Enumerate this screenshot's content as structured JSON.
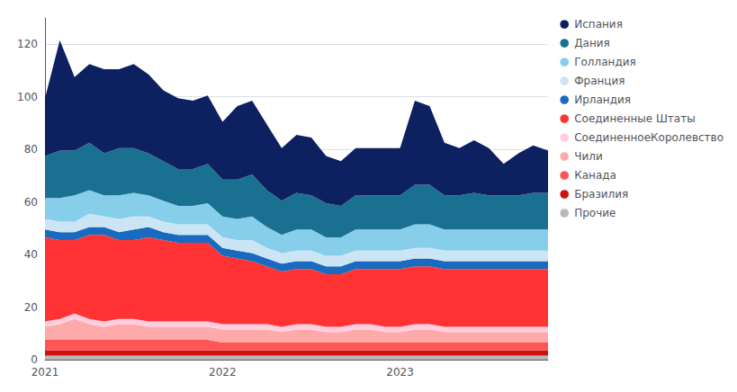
{
  "chart_data": {
    "type": "stackedarea",
    "stacked": true,
    "grid": true,
    "legend": "right",
    "categories": [
      "2021",
      null,
      null,
      null,
      null,
      null,
      null,
      null,
      null,
      null,
      null,
      null,
      "2022",
      null,
      null,
      null,
      null,
      null,
      null,
      null,
      null,
      null,
      null,
      null,
      "2023",
      null,
      null,
      null,
      null,
      null,
      null,
      null,
      null,
      null,
      null
    ],
    "ylim": [
      0,
      130
    ],
    "yticks": [
      0,
      20,
      40,
      60,
      80,
      100,
      120
    ],
    "series": [
      {
        "name": "Прочие",
        "color": "#b8b8b8",
        "values": [
          1.5,
          1.5,
          1.5,
          1.5,
          1.5,
          1.5,
          1.5,
          1.5,
          1.5,
          1.5,
          1.5,
          1.5,
          1.5,
          1.5,
          1.5,
          1.5,
          1.5,
          1.5,
          1.5,
          1.5,
          1.5,
          1.5,
          1.5,
          1.5,
          1.5,
          1.5,
          1.5,
          1.5,
          1.5,
          1.5,
          1.5,
          1.5,
          1.5,
          1.5,
          1.5
        ]
      },
      {
        "name": "Бразилия",
        "color": "#cc1111",
        "values": [
          2,
          2,
          2,
          2,
          2,
          2,
          2,
          2,
          2,
          2,
          2,
          2,
          2,
          2,
          2,
          2,
          2,
          2,
          2,
          2,
          2,
          2,
          2,
          2,
          2,
          2,
          2,
          2,
          2,
          2,
          2,
          2,
          2,
          2,
          2
        ]
      },
      {
        "name": "Канада",
        "color": "#ff5555",
        "values": [
          4,
          4,
          4,
          4,
          4,
          4,
          4,
          4,
          4,
          4,
          4,
          4,
          3,
          3,
          3,
          3,
          3,
          3,
          3,
          3,
          3,
          3,
          3,
          3,
          3,
          3,
          3,
          3,
          3,
          3,
          3,
          3,
          3,
          3,
          3
        ]
      },
      {
        "name": "Чили",
        "color": "#ffaaaa",
        "values": [
          5,
          6,
          8,
          6,
          5,
          6,
          6,
          5,
          5,
          5,
          5,
          5,
          5,
          5,
          5,
          5,
          4,
          5,
          5,
          4,
          4,
          5,
          5,
          4,
          4,
          5,
          5,
          4,
          4,
          4,
          4,
          4,
          4,
          4,
          4
        ]
      },
      {
        "name": "СоединенноеКоролевство",
        "color": "#ffcce0",
        "values": [
          2,
          2,
          2,
          2,
          2,
          2,
          2,
          2,
          2,
          2,
          2,
          2,
          2,
          2,
          2,
          2,
          2,
          2,
          2,
          2,
          2,
          2,
          2,
          2,
          2,
          2,
          2,
          2,
          2,
          2,
          2,
          2,
          2,
          2,
          2
        ]
      },
      {
        "name": "Соединенные Штаты",
        "color": "#ff3333",
        "values": [
          32,
          30,
          28,
          32,
          33,
          30,
          30,
          32,
          31,
          30,
          30,
          30,
          26,
          25,
          24,
          22,
          21,
          21,
          21,
          20,
          20,
          21,
          21,
          22,
          22,
          22,
          22,
          22,
          22,
          22,
          22,
          22,
          22,
          22,
          22
        ]
      },
      {
        "name": "Ирландия",
        "color": "#1a6abf",
        "values": [
          3,
          3,
          3,
          3,
          3,
          3,
          4,
          4,
          3,
          3,
          3,
          3,
          3,
          3,
          3,
          3,
          3,
          3,
          3,
          3,
          3,
          3,
          3,
          3,
          3,
          3,
          3,
          3,
          3,
          3,
          3,
          3,
          3,
          3,
          3
        ]
      },
      {
        "name": "Франция",
        "color": "#cce5f5",
        "values": [
          4,
          4,
          4,
          5,
          4,
          5,
          5,
          4,
          4,
          4,
          4,
          4,
          4,
          4,
          5,
          4,
          4,
          4,
          4,
          4,
          4,
          4,
          4,
          4,
          4,
          4,
          4,
          4,
          4,
          4,
          4,
          4,
          4,
          4,
          4
        ]
      },
      {
        "name": "Голландия",
        "color": "#87CEEB",
        "values": [
          8,
          9,
          10,
          9,
          8,
          9,
          9,
          8,
          8,
          7,
          7,
          8,
          8,
          8,
          9,
          8,
          7,
          8,
          8,
          7,
          7,
          8,
          8,
          8,
          8,
          9,
          9,
          8,
          8,
          8,
          8,
          8,
          8,
          8,
          8
        ]
      },
      {
        "name": "Дания",
        "color": "#1a7090",
        "values": [
          16,
          18,
          17,
          18,
          16,
          18,
          17,
          16,
          15,
          14,
          14,
          15,
          14,
          15,
          16,
          14,
          13,
          14,
          13,
          13,
          12,
          13,
          13,
          13,
          13,
          15,
          15,
          13,
          13,
          14,
          13,
          13,
          13,
          14,
          14
        ]
      },
      {
        "name": "Испания",
        "color": "#0d2060",
        "values": [
          22,
          42,
          28,
          30,
          32,
          30,
          32,
          30,
          27,
          27,
          26,
          26,
          22,
          28,
          28,
          25,
          20,
          22,
          22,
          18,
          17,
          18,
          18,
          18,
          18,
          32,
          30,
          20,
          18,
          20,
          18,
          12,
          16,
          18,
          16
        ]
      }
    ]
  }
}
